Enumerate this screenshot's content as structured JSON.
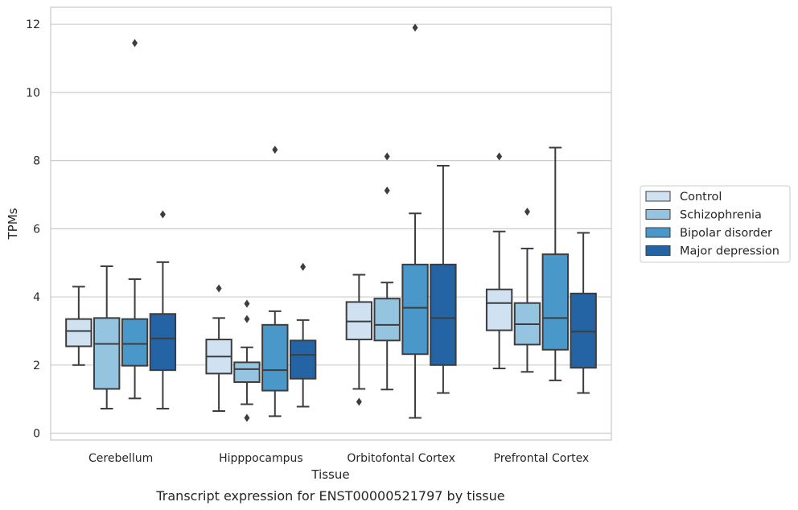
{
  "chart_data": {
    "type": "box",
    "xlabel": "Tissue",
    "ylabel": "TPMs",
    "caption": "Transcript expression for ENST00000521797 by tissue",
    "ylim": [
      -0.2,
      12.5
    ],
    "yticks": [
      0,
      2,
      4,
      6,
      8,
      10,
      12
    ],
    "grid": "horizontal",
    "legend_position": "right",
    "categories": [
      "Cerebellum",
      "Hipppocampus",
      "Orbitofontal Cortex",
      "Prefrontal Cortex"
    ],
    "series": [
      {
        "name": "Control",
        "color": "#d0e1f2",
        "boxes": [
          {
            "whislo": 2.0,
            "q1": 2.55,
            "med": 3.0,
            "q3": 3.35,
            "whishi": 4.3,
            "fliers": []
          },
          {
            "whislo": 0.65,
            "q1": 1.75,
            "med": 2.25,
            "q3": 2.75,
            "whishi": 3.38,
            "fliers": [
              4.25
            ]
          },
          {
            "whislo": 1.3,
            "q1": 2.75,
            "med": 3.28,
            "q3": 3.85,
            "whishi": 4.65,
            "fliers": [
              0.92
            ]
          },
          {
            "whislo": 1.9,
            "q1": 3.02,
            "med": 3.82,
            "q3": 4.22,
            "whishi": 5.92,
            "fliers": [
              8.12
            ]
          }
        ]
      },
      {
        "name": "Schizophrenia",
        "color": "#94c4df",
        "boxes": [
          {
            "whislo": 0.72,
            "q1": 1.3,
            "med": 2.62,
            "q3": 3.38,
            "whishi": 4.9,
            "fliers": []
          },
          {
            "whislo": 0.85,
            "q1": 1.5,
            "med": 1.88,
            "q3": 2.08,
            "whishi": 2.52,
            "fliers": [
              3.8,
              3.35,
              0.45
            ]
          },
          {
            "whislo": 1.28,
            "q1": 2.72,
            "med": 3.18,
            "q3": 3.95,
            "whishi": 4.42,
            "fliers": [
              8.12,
              7.12
            ]
          },
          {
            "whislo": 1.8,
            "q1": 2.6,
            "med": 3.2,
            "q3": 3.82,
            "whishi": 5.42,
            "fliers": [
              6.5
            ]
          }
        ]
      },
      {
        "name": "Bipolar disorder",
        "color": "#4a98c9",
        "boxes": [
          {
            "whislo": 1.02,
            "q1": 1.98,
            "med": 2.62,
            "q3": 3.35,
            "whishi": 4.52,
            "fliers": [
              11.45
            ]
          },
          {
            "whislo": 0.5,
            "q1": 1.25,
            "med": 1.85,
            "q3": 3.18,
            "whishi": 3.58,
            "fliers": [
              8.32
            ]
          },
          {
            "whislo": 0.45,
            "q1": 2.32,
            "med": 3.68,
            "q3": 4.95,
            "whishi": 6.45,
            "fliers": [
              11.9
            ]
          },
          {
            "whislo": 1.55,
            "q1": 2.45,
            "med": 3.38,
            "q3": 5.25,
            "whishi": 8.38,
            "fliers": []
          }
        ]
      },
      {
        "name": "Major depression",
        "color": "#2464a5",
        "boxes": [
          {
            "whislo": 0.72,
            "q1": 1.85,
            "med": 2.78,
            "q3": 3.5,
            "whishi": 5.02,
            "fliers": [
              6.42
            ]
          },
          {
            "whislo": 0.78,
            "q1": 1.6,
            "med": 2.3,
            "q3": 2.72,
            "whishi": 3.32,
            "fliers": [
              4.88
            ]
          },
          {
            "whislo": 1.18,
            "q1": 2.0,
            "med": 3.38,
            "q3": 4.95,
            "whishi": 7.85,
            "fliers": []
          },
          {
            "whislo": 1.18,
            "q1": 1.92,
            "med": 2.98,
            "q3": 4.1,
            "whishi": 5.88,
            "fliers": []
          }
        ]
      }
    ]
  }
}
